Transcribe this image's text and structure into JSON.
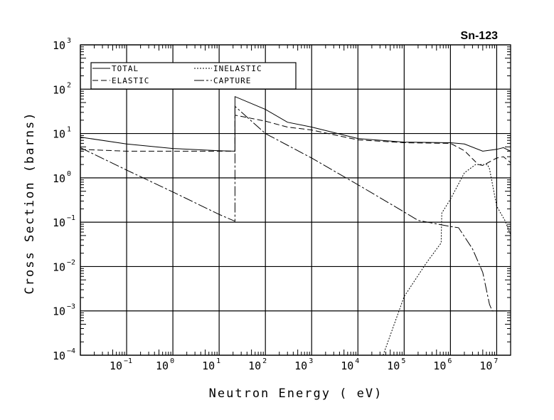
{
  "chart_data": {
    "type": "line",
    "title": "Sn-123",
    "xlabel": "Neutron Energy ( eV)",
    "ylabel": "Cross Section (barns)",
    "xscale": "log",
    "yscale": "log",
    "xlim": [
      0.01,
      20000000
    ],
    "ylim": [
      0.0001,
      1000
    ],
    "grid": true,
    "legend_placement": "top-left",
    "x_tick_labels": [
      {
        "base": "10",
        "exp": "-1"
      },
      {
        "base": "10",
        "exp": "0"
      },
      {
        "base": "10",
        "exp": "1"
      },
      {
        "base": "10",
        "exp": "2"
      },
      {
        "base": "10",
        "exp": "3"
      },
      {
        "base": "10",
        "exp": "4"
      },
      {
        "base": "10",
        "exp": "5"
      },
      {
        "base": "10",
        "exp": "6"
      },
      {
        "base": "10",
        "exp": "7"
      }
    ],
    "y_tick_labels": [
      {
        "base": "10",
        "exp": "3"
      },
      {
        "base": "10",
        "exp": "2"
      },
      {
        "base": "10",
        "exp": "1"
      },
      {
        "base": "10",
        "exp": "0"
      },
      {
        "base": "10",
        "exp": "-1"
      },
      {
        "base": "10",
        "exp": "-2"
      },
      {
        "base": "10",
        "exp": "-3"
      },
      {
        "base": "10",
        "exp": "-4"
      }
    ],
    "series": [
      {
        "name": "TOTAL",
        "style": "solid",
        "x": [
          0.01,
          0.1,
          1,
          10,
          22,
          22,
          100,
          300,
          1000,
          10000,
          100000,
          1000000,
          2000000,
          5000000,
          10000000,
          14000000,
          20000000
        ],
        "y": [
          8.3,
          5.8,
          4.6,
          4.1,
          4.0,
          68,
          35,
          18,
          14,
          7.7,
          6.4,
          6.2,
          5.8,
          4.0,
          4.4,
          4.8,
          4.0
        ]
      },
      {
        "name": "ELASTIC",
        "style": "dashed",
        "x": [
          0.01,
          0.1,
          1,
          10,
          22,
          22,
          100,
          300,
          1000,
          10000,
          100000,
          1000000,
          2000000,
          4000000,
          5000000,
          10000000,
          14000000,
          20000000
        ],
        "y": [
          4.4,
          4.0,
          4.0,
          4.0,
          4.0,
          26,
          19,
          14,
          12,
          7.2,
          6.2,
          6.0,
          4.1,
          2.0,
          1.9,
          2.8,
          3.0,
          2.2
        ]
      },
      {
        "name": "INELASTIC",
        "style": "dotted",
        "x": [
          35000,
          100000,
          300000,
          630000,
          650000,
          1000000,
          2000000,
          3500000,
          6300000,
          7000000,
          10000000,
          15000000,
          20000000
        ],
        "y": [
          0.0001,
          0.0021,
          0.012,
          0.034,
          0.16,
          0.33,
          1.3,
          2.0,
          2.0,
          1.6,
          0.23,
          0.11,
          0.052
        ]
      },
      {
        "name": "CAPTURE",
        "style": "dash-dot",
        "x": [
          0.01,
          0.1,
          1,
          10,
          22,
          22,
          100,
          1000,
          10000,
          100000,
          200000,
          1000000,
          1500000,
          3000000,
          5000000,
          7000000,
          8000000,
          10000000,
          20000000
        ],
        "y": [
          4.8,
          1.5,
          0.48,
          0.15,
          0.105,
          41,
          10,
          2.8,
          0.7,
          0.17,
          0.11,
          0.08,
          0.075,
          0.025,
          0.0074,
          0.0014,
          0.001,
          0.001,
          0.001
        ]
      }
    ],
    "colors": {
      "line": "#000000",
      "background": "#ffffff"
    }
  }
}
